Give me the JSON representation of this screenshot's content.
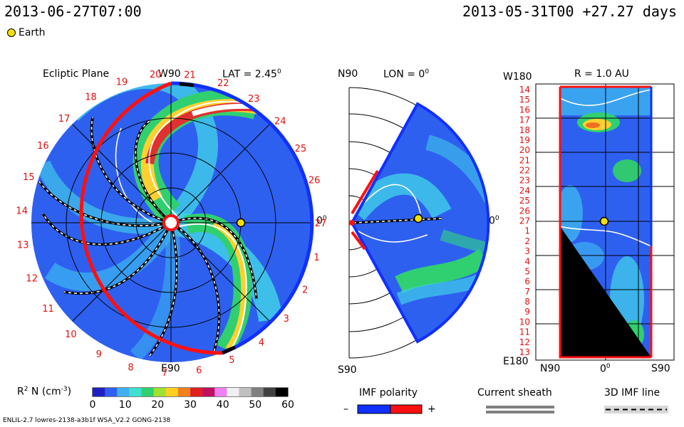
{
  "header": {
    "timestamp": "2013-06-27T07:00",
    "reference": "2013-05-31T00 +27.27 days",
    "earth_legend": "Earth"
  },
  "panels": {
    "ecliptic": {
      "title": "Ecliptic Plane",
      "lat_label": "LAT = 2.45",
      "top_label": "W90",
      "bottom_label": "E90",
      "right_label": "0",
      "degree": "0",
      "carrington_ticks": [
        "1",
        "2",
        "3",
        "4",
        "5",
        "6",
        "7",
        "8",
        "9",
        "10",
        "11",
        "12",
        "13",
        "14",
        "15",
        "16",
        "17",
        "18",
        "19",
        "20",
        "21",
        "22",
        "23",
        "24",
        "25",
        "26",
        "27"
      ]
    },
    "meridional": {
      "top_label": "N90",
      "lon_label": "LON = 0",
      "bottom_label": "S90",
      "right_label": "0",
      "degree": "0"
    },
    "sphere": {
      "title": "R = 1.0 AU",
      "top_left": "W180",
      "bottom_left": "E180",
      "x_left": "N90",
      "x_mid": "0",
      "x_right": "S90",
      "degree": "0",
      "y_ticks": [
        "14",
        "15",
        "16",
        "17",
        "18",
        "19",
        "20",
        "21",
        "22",
        "23",
        "24",
        "25",
        "26",
        "27",
        "1",
        "2",
        "3",
        "4",
        "5",
        "6",
        "7",
        "8",
        "9",
        "10",
        "11",
        "12",
        "13"
      ]
    }
  },
  "legend": {
    "density_label": "R  N (cm  )",
    "density_super_r": "2",
    "density_super_unit": "-3",
    "density_ticks": [
      "0",
      "10",
      "20",
      "30",
      "40",
      "50",
      "60"
    ],
    "imf_title": "IMF polarity",
    "imf_minus": "–",
    "imf_plus": "+",
    "sheath_title": "Current sheath",
    "imf3d_title": "3D IMF line"
  },
  "footer": {
    "model_info": "ENLIL-2.7 lowres-2138-a3b1f WSA_V2.2 GONG-2138"
  },
  "chart_data": {
    "type": "heatmap",
    "quantity": "R² N (cm⁻³)",
    "colorbar_range": [
      0,
      60
    ],
    "colorbar_ticks": [
      0,
      10,
      20,
      30,
      40,
      50,
      60
    ],
    "lat": 2.45,
    "lon": 0,
    "radius_au": 1.0,
    "earth_marker": "yellow circle"
  },
  "colors": {
    "background_field": "#2b5cf0",
    "negative_polarity": "#1030ff",
    "positive_polarity": "#ff1010",
    "sheath": "#ffffff",
    "earth": "#f5e000",
    "tick_red": "#e01010"
  }
}
